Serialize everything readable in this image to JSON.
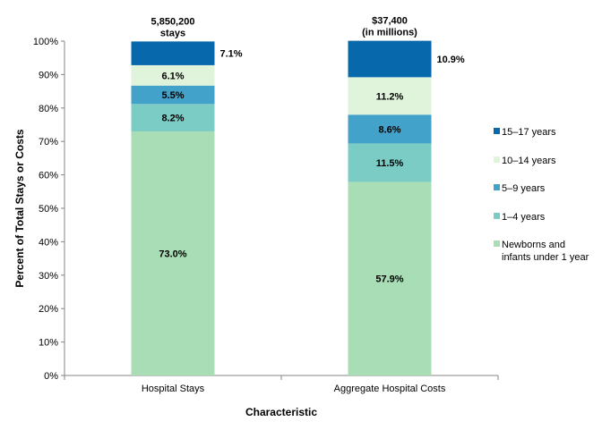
{
  "chart_data": {
    "type": "bar",
    "stacked": true,
    "xlabel": "Characteristic",
    "ylabel": "Percent of Total Stays or Costs",
    "ylim": [
      0,
      100
    ],
    "yticks": [
      "0%",
      "10%",
      "20%",
      "30%",
      "40%",
      "50%",
      "60%",
      "70%",
      "80%",
      "90%",
      "100%"
    ],
    "categories": [
      "Hospital Stays",
      "Aggregate Hospital Costs"
    ],
    "totals": [
      [
        "5,850,200",
        "stays"
      ],
      [
        "$37,400",
        "(in millions)"
      ]
    ],
    "grid": false,
    "legend_position": "right",
    "series": [
      {
        "name": "Newborns and infants under 1 year",
        "legend_lines": [
          "Newborns and",
          "infants under 1 year"
        ],
        "color": "#a8ddb5",
        "values": [
          73.0,
          57.9
        ],
        "labels": [
          "73.0%",
          "57.9%"
        ]
      },
      {
        "name": "1–4 years",
        "legend_lines": [
          "1–4 years"
        ],
        "color": "#7bccc4",
        "values": [
          8.2,
          11.5
        ],
        "labels": [
          "8.2%",
          "11.5%"
        ]
      },
      {
        "name": "5–9 years",
        "legend_lines": [
          "5–9 years"
        ],
        "color": "#43a2ca",
        "values": [
          5.5,
          8.6
        ],
        "labels": [
          "5.5%",
          "8.6%"
        ]
      },
      {
        "name": "10–14 years",
        "legend_lines": [
          "10–14 years"
        ],
        "color": "#e0f3db",
        "values": [
          6.1,
          11.2
        ],
        "labels": [
          "6.1%",
          "11.2%"
        ]
      },
      {
        "name": "15–17 years",
        "legend_lines": [
          "15–17 years"
        ],
        "color": "#0868ac",
        "values": [
          7.1,
          10.9
        ],
        "labels": [
          "7.1%",
          "10.9%"
        ]
      }
    ]
  }
}
